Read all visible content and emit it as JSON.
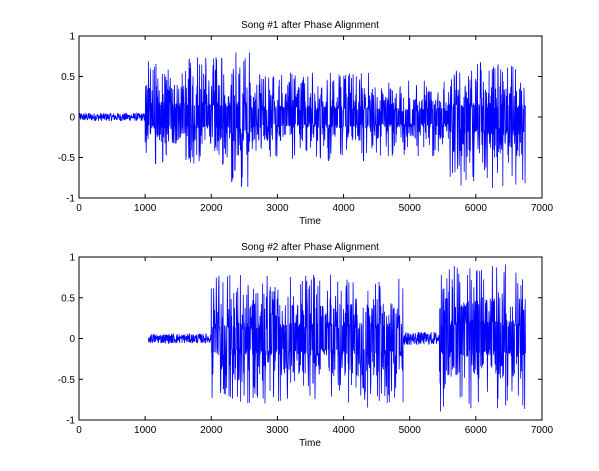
{
  "chart_data": [
    {
      "type": "line",
      "title": "Song #1 after Phase Alignment",
      "xlabel": "Time",
      "ylabel": "",
      "xlim": [
        0,
        7000
      ],
      "ylim": [
        -1,
        1
      ],
      "xticks": [
        "0",
        "1000",
        "2000",
        "3000",
        "4000",
        "5000",
        "6000",
        "7000"
      ],
      "yticks": [
        "1",
        "0.5",
        "0",
        "-0.5",
        "-1"
      ],
      "grid": false,
      "legend": "none",
      "series": [
        {
          "color": "#0000ff",
          "segments": [
            {
              "x_start": 0,
              "x_end": 1000,
              "amp_min": -0.05,
              "amp_max": 0.05
            },
            {
              "x_start": 1000,
              "x_end": 2300,
              "amp_min": -0.6,
              "amp_max": 0.75
            },
            {
              "x_start": 2300,
              "x_end": 2600,
              "amp_min": -0.88,
              "amp_max": 0.8
            },
            {
              "x_start": 2600,
              "x_end": 4400,
              "amp_min": -0.55,
              "amp_max": 0.55
            },
            {
              "x_start": 4400,
              "x_end": 5600,
              "amp_min": -0.5,
              "amp_max": 0.45
            },
            {
              "x_start": 5600,
              "x_end": 6750,
              "amp_min": -0.92,
              "amp_max": 0.7
            }
          ]
        }
      ]
    },
    {
      "type": "line",
      "title": "Song #2 after Phase Alignment",
      "xlabel": "Time",
      "ylabel": "",
      "xlim": [
        0,
        7000
      ],
      "ylim": [
        -1,
        1
      ],
      "xticks": [
        "0",
        "1000",
        "2000",
        "3000",
        "4000",
        "5000",
        "6000",
        "7000"
      ],
      "yticks": [
        "1",
        "0.5",
        "0",
        "-0.5",
        "-1"
      ],
      "grid": false,
      "legend": "none",
      "series": [
        {
          "color": "#0000ff",
          "segments": [
            {
              "x_start": 1050,
              "x_end": 2000,
              "amp_min": -0.06,
              "amp_max": 0.06
            },
            {
              "x_start": 2000,
              "x_end": 3500,
              "amp_min": -0.82,
              "amp_max": 0.78
            },
            {
              "x_start": 3500,
              "x_end": 4900,
              "amp_min": -0.85,
              "amp_max": 0.8
            },
            {
              "x_start": 4900,
              "x_end": 5450,
              "amp_min": -0.08,
              "amp_max": 0.08
            },
            {
              "x_start": 5450,
              "x_end": 6750,
              "amp_min": -0.9,
              "amp_max": 0.92
            }
          ]
        }
      ]
    }
  ]
}
